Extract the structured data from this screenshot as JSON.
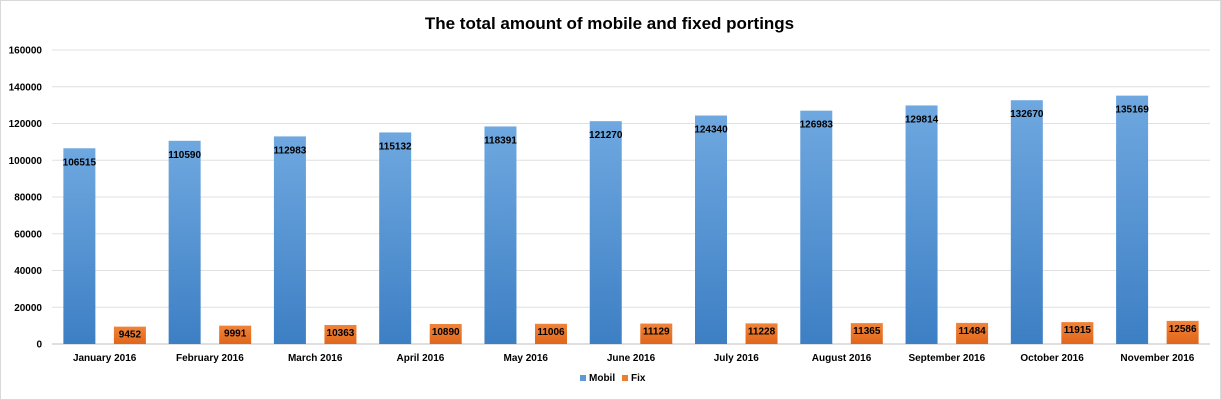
{
  "chart_data": {
    "type": "bar",
    "title": "The total amount of mobile and fixed portings",
    "xlabel": "",
    "ylabel": "",
    "ylim": [
      0,
      160000
    ],
    "yticks": [
      0,
      20000,
      40000,
      60000,
      80000,
      100000,
      120000,
      140000,
      160000
    ],
    "grid": true,
    "legend": "bottom",
    "categories": [
      "January 2016",
      "February 2016",
      "March 2016",
      "April 2016",
      "May 2016",
      "June 2016",
      "July 2016",
      "August 2016",
      "September 2016",
      "October 2016",
      "November 2016"
    ],
    "series": [
      {
        "name": "Mobil",
        "color": "#5b9bd5",
        "values": [
          106515,
          110590,
          112983,
          115132,
          118391,
          121270,
          124340,
          126983,
          129814,
          132670,
          135169
        ]
      },
      {
        "name": "Fix",
        "color": "#ed7d31",
        "values": [
          9452,
          9991,
          10363,
          10890,
          11006,
          11129,
          11228,
          11365,
          11484,
          11915,
          12586
        ]
      }
    ]
  }
}
